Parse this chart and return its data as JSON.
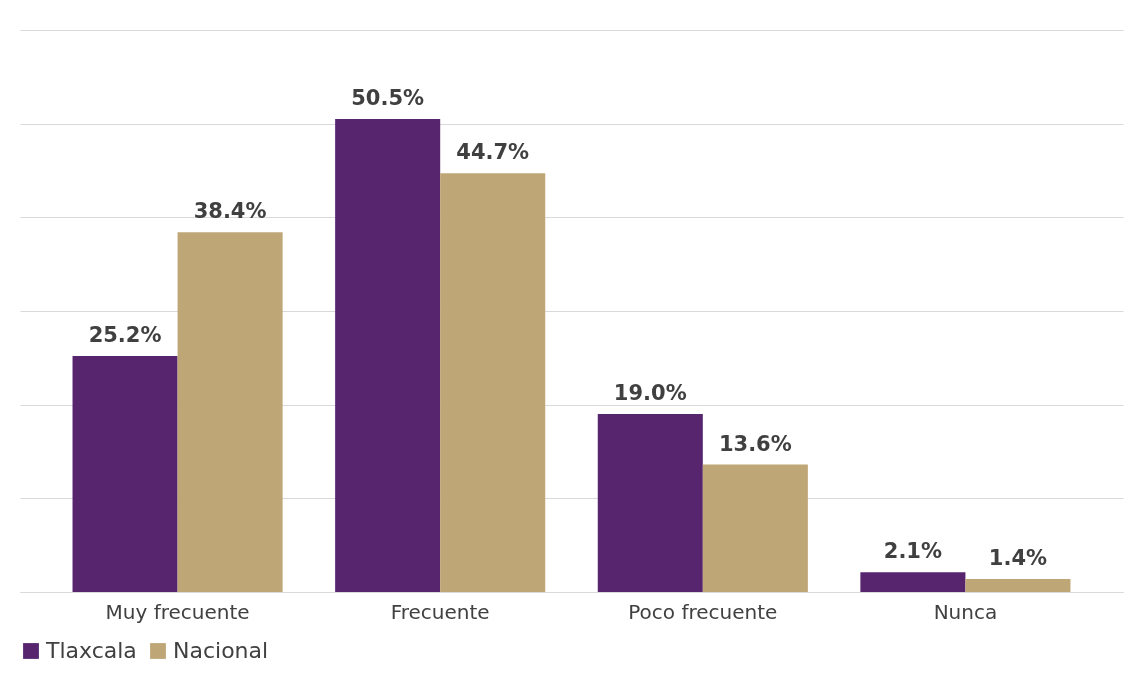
{
  "chart_data": {
    "type": "bar",
    "categories": [
      "Muy frecuente",
      "Frecuente",
      "Poco frecuente",
      "Nunca"
    ],
    "series": [
      {
        "name": "Tlaxcala",
        "color": "#56256e",
        "values": [
          25.2,
          50.5,
          19.0,
          2.1
        ],
        "value_labels": [
          "25.2%",
          "50.5%",
          "19.0%",
          "2.1%"
        ]
      },
      {
        "name": "Nacional",
        "color": "#bfa676",
        "values": [
          38.4,
          44.7,
          13.6,
          1.4
        ],
        "value_labels": [
          "38.4%",
          "44.7%",
          "13.6%",
          "1.4%"
        ]
      }
    ],
    "ylim": [
      0,
      60
    ],
    "yticks": [
      {
        "value": 0,
        "label": null
      },
      {
        "value": 10,
        "label": null
      },
      {
        "value": 20,
        "label": null
      },
      {
        "value": 30,
        "label": null
      },
      {
        "value": 40,
        "label": null
      },
      {
        "value": 50,
        "label": null
      },
      {
        "value": 60,
        "label": null
      }
    ],
    "grid": "y",
    "legend": "bottom",
    "tick_labels": "x"
  }
}
